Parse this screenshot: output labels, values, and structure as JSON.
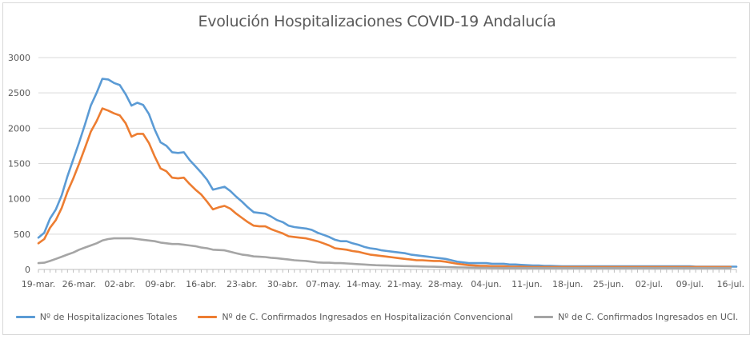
{
  "chart_data": {
    "type": "line",
    "title": "Evolución Hospitalizaciones COVID-19 Andalucía",
    "xlabel": "",
    "ylabel": "",
    "ylim": [
      0,
      3000
    ],
    "y_ticks": [
      0,
      500,
      1000,
      1500,
      2000,
      2500,
      3000
    ],
    "x_start": "19-mar.",
    "x_ticks": [
      "19-mar.",
      "26-mar.",
      "02-abr.",
      "09-abr.",
      "16-abr.",
      "23-abr.",
      "30-abr.",
      "07-may.",
      "14-may.",
      "21-may.",
      "28-may.",
      "04-jun.",
      "11-jun.",
      "18-jun.",
      "25-jun.",
      "02-jul.",
      "09-jul.",
      "16-jul."
    ],
    "grid": "horizontal",
    "legend_position": "bottom",
    "series": [
      {
        "name": "Nº de Hospitalizaciones Totales",
        "color": "#5b9bd5",
        "values": [
          450,
          520,
          720,
          850,
          1050,
          1320,
          1560,
          1800,
          2050,
          2320,
          2500,
          2700,
          2690,
          2640,
          2610,
          2480,
          2320,
          2360,
          2330,
          2200,
          1980,
          1800,
          1750,
          1660,
          1650,
          1660,
          1550,
          1460,
          1370,
          1270,
          1130,
          1150,
          1170,
          1110,
          1030,
          960,
          880,
          810,
          800,
          790,
          750,
          700,
          670,
          620,
          600,
          590,
          580,
          560,
          520,
          490,
          460,
          420,
          400,
          400,
          370,
          350,
          320,
          300,
          290,
          270,
          260,
          250,
          240,
          230,
          210,
          200,
          190,
          180,
          170,
          160,
          150,
          130,
          110,
          100,
          90,
          90,
          90,
          90,
          80,
          80,
          80,
          70,
          70,
          65,
          60,
          55,
          55,
          50,
          50,
          48,
          45,
          45,
          45,
          45,
          45,
          45,
          45,
          45,
          45,
          45,
          45,
          45,
          45,
          45,
          45,
          45,
          45,
          45,
          45,
          45,
          45,
          45,
          45,
          40,
          40,
          40,
          40,
          40,
          40,
          40,
          40
        ]
      },
      {
        "name": "Nº de C. Confirmados Ingresados en Hospitalización Convencional",
        "color": "#ed7d31",
        "values": [
          370,
          430,
          590,
          700,
          870,
          1100,
          1290,
          1500,
          1720,
          1950,
          2100,
          2280,
          2250,
          2210,
          2180,
          2070,
          1880,
          1920,
          1920,
          1790,
          1600,
          1430,
          1390,
          1300,
          1290,
          1300,
          1210,
          1130,
          1060,
          960,
          850,
          880,
          900,
          860,
          790,
          730,
          670,
          620,
          610,
          610,
          570,
          540,
          510,
          470,
          460,
          450,
          440,
          420,
          400,
          370,
          340,
          300,
          290,
          280,
          260,
          250,
          230,
          210,
          200,
          190,
          180,
          170,
          160,
          150,
          140,
          130,
          130,
          125,
          120,
          120,
          110,
          95,
          80,
          70,
          60,
          55,
          50,
          50,
          45,
          45,
          45,
          40,
          40,
          38,
          36,
          35,
          35,
          35,
          35,
          35,
          35,
          35,
          35,
          35,
          35,
          35,
          35,
          35,
          35,
          35,
          35,
          35,
          35,
          35,
          35,
          35,
          35,
          35,
          35,
          35,
          35,
          35,
          35,
          35,
          35,
          35,
          35,
          35,
          35,
          35
        ]
      },
      {
        "name": "Nº de C. Confirmados Ingresados en UCI.",
        "color": "#a5a5a5",
        "values": [
          90,
          95,
          120,
          150,
          180,
          210,
          240,
          280,
          310,
          340,
          370,
          410,
          430,
          440,
          440,
          440,
          440,
          430,
          420,
          410,
          400,
          380,
          370,
          360,
          360,
          350,
          340,
          330,
          310,
          300,
          280,
          275,
          270,
          250,
          230,
          210,
          200,
          185,
          180,
          175,
          165,
          160,
          150,
          140,
          130,
          125,
          120,
          110,
          100,
          95,
          95,
          90,
          90,
          85,
          80,
          75,
          70,
          65,
          60,
          58,
          55,
          52,
          50,
          48,
          46,
          44,
          42,
          40,
          38,
          36,
          34,
          32,
          30,
          28,
          26,
          25,
          24,
          23,
          22,
          21,
          20,
          20,
          20,
          20,
          20,
          20,
          20,
          20,
          20,
          20,
          20,
          20,
          20,
          20,
          20,
          20,
          20,
          20,
          20,
          20,
          20,
          20,
          20,
          20,
          20,
          20,
          20,
          20,
          20,
          20,
          20,
          20,
          20,
          20,
          20,
          20,
          20,
          20,
          20,
          20
        ]
      }
    ]
  }
}
